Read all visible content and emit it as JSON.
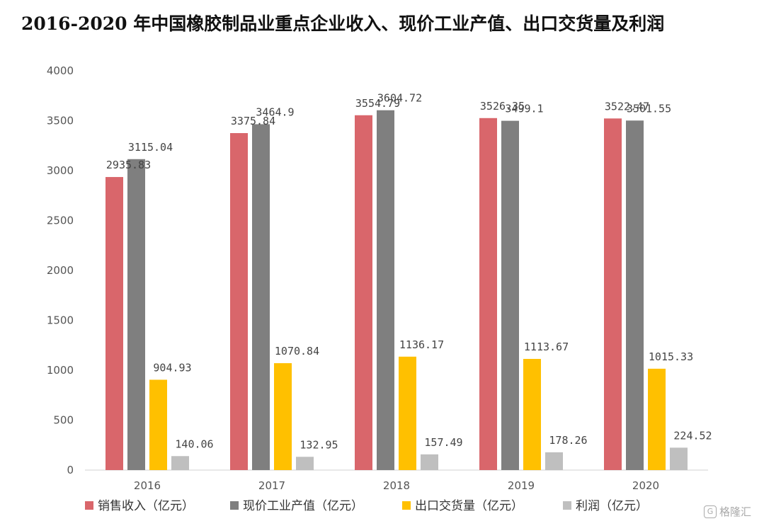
{
  "chart_data": {
    "type": "bar",
    "title": "2016-2020 年中国橡胶制品业重点企业收入、现价工业产值、出口交货量及利润",
    "categories": [
      "2016",
      "2017",
      "2018",
      "2019",
      "2020"
    ],
    "ylim": [
      0,
      4000
    ],
    "yticks": [
      0,
      500,
      1000,
      1500,
      2000,
      2500,
      3000,
      3500,
      4000
    ],
    "grid": false,
    "legend": "bottom",
    "series": [
      {
        "name": "销售收入（亿元）",
        "color": "#d9666b",
        "values": [
          2935.83,
          3375.84,
          3554.79,
          3526.35,
          3522.47
        ],
        "labels": [
          "2935.83",
          "3375.84",
          "3554.79",
          "3526.35",
          "3522.47"
        ]
      },
      {
        "name": "现价工业产值（亿元）",
        "color": "#7f7f7f",
        "values": [
          3115.04,
          3464.9,
          3604.72,
          3499.1,
          3501.55
        ],
        "labels": [
          "3115.04",
          "3464.9",
          "3604.72",
          "3499.1",
          "3501.55"
        ]
      },
      {
        "name": "出口交货量（亿元）",
        "color": "#ffc000",
        "values": [
          904.93,
          1070.84,
          1136.17,
          1113.67,
          1015.33
        ],
        "labels": [
          "904.93",
          "1070.84",
          "1136.17",
          "1113.67",
          "1015.33"
        ]
      },
      {
        "name": "利润（亿元）",
        "color": "#bfbfbf",
        "values": [
          140.06,
          132.95,
          157.49,
          178.26,
          224.52
        ],
        "labels": [
          "140.06",
          "132.95",
          "157.49",
          "178.26",
          "224.52"
        ]
      }
    ]
  },
  "watermark": {
    "icon": "G",
    "text": "格隆汇"
  }
}
